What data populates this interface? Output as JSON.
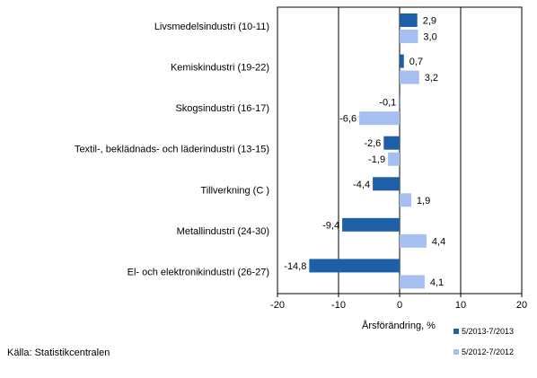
{
  "chart_data": {
    "type": "bar",
    "orientation": "horizontal",
    "categories": [
      "Livsmedelsindustri (10-11)",
      "Kemiskindustri (19-22)",
      "Skogsindustri (16-17)",
      "Textil-, beklädnads- och läderindustri (13-15)",
      "Tillverkning (C )",
      "Metallindustri (24-30)",
      "El- och elektronikindustri (26-27)"
    ],
    "series": [
      {
        "name": "5/2013-7/2013",
        "color": "#1f5fa8",
        "values": [
          2.9,
          0.7,
          -0.1,
          -2.6,
          -4.4,
          -9.4,
          -14.8
        ],
        "labels": [
          "2,9",
          "0,7",
          "-0,1",
          "-2,6",
          "-4,4",
          "-9,4",
          "-14,8"
        ]
      },
      {
        "name": "5/2012-7/2012",
        "color": "#a7bff0",
        "values": [
          3.0,
          3.2,
          -6.6,
          -1.9,
          1.9,
          4.4,
          4.1
        ],
        "labels": [
          "3,0",
          "3,2",
          "-6,6",
          "-1,9",
          "1,9",
          "4,4",
          "4,1"
        ]
      }
    ],
    "xlabel": "Årsförändring, %",
    "xlim": [
      -20,
      20
    ],
    "xticks": [
      -20,
      -10,
      0,
      10,
      20
    ],
    "grid": true,
    "legend_position": "bottom-right"
  },
  "source": "Källa: Statistikcentralen"
}
